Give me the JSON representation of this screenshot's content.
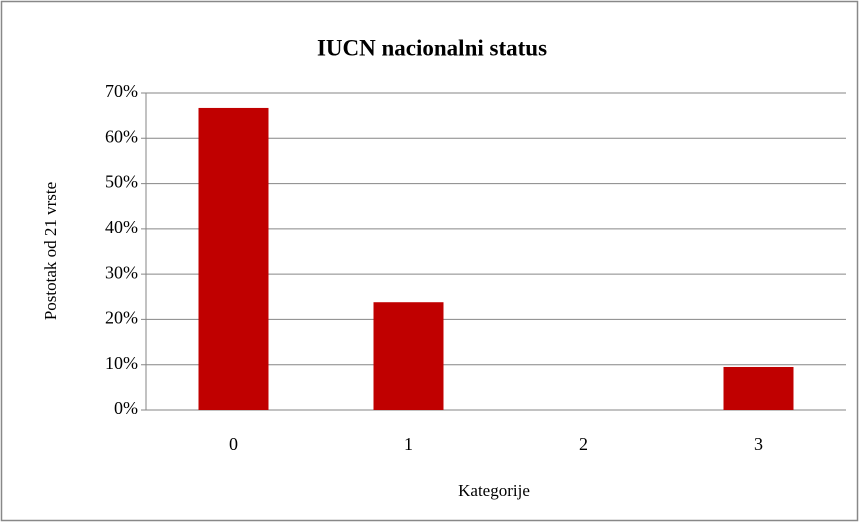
{
  "chart_data": {
    "type": "bar",
    "title": "IUCN nacionalni status",
    "x_label": "Kategorije",
    "y_label": "Postotak od 21 vrste",
    "categories": [
      "0",
      "1",
      "2",
      "3"
    ],
    "values": [
      66.7,
      23.8,
      0,
      9.5
    ],
    "color": "#c00000",
    "ylim": [
      0,
      70
    ],
    "yticks": [
      {
        "value": 0,
        "label": "0%"
      },
      {
        "value": 10,
        "label": "10%"
      },
      {
        "value": 20,
        "label": "20%"
      },
      {
        "value": 30,
        "label": "30%"
      },
      {
        "value": 40,
        "label": "40%"
      },
      {
        "value": 50,
        "label": "50%"
      },
      {
        "value": 60,
        "label": "60%"
      },
      {
        "value": 70,
        "label": "70%"
      }
    ],
    "grid": true
  }
}
